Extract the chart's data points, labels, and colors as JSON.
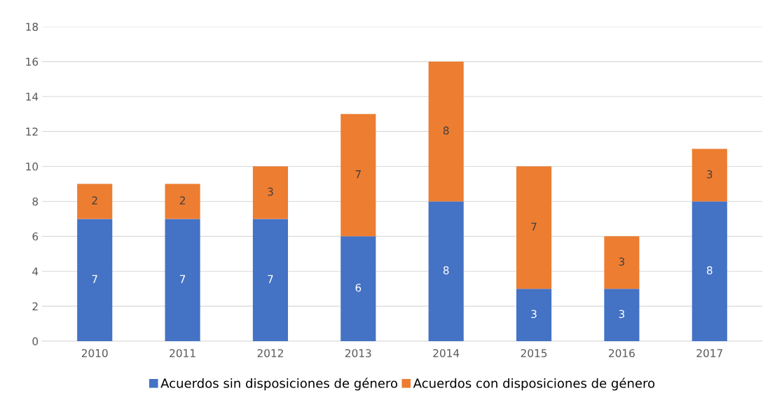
{
  "chart_data": {
    "type": "bar",
    "stacked": true,
    "categories": [
      "2010",
      "2011",
      "2012",
      "2013",
      "2014",
      "2015",
      "2016",
      "2017"
    ],
    "series": [
      {
        "name": "Acuerdos sin disposiciones de género",
        "color": "#4472c4",
        "values": [
          7,
          7,
          7,
          6,
          8,
          3,
          3,
          8
        ]
      },
      {
        "name": "Acuerdos con disposiciones de género",
        "color": "#ed7d31",
        "values": [
          2,
          2,
          3,
          7,
          8,
          7,
          3,
          3
        ]
      }
    ],
    "ylim": [
      0,
      18
    ],
    "yticks": [
      0,
      2,
      4,
      6,
      8,
      10,
      12,
      14,
      16,
      18
    ],
    "grid": "y",
    "legend": "bottom",
    "data_labels": true
  }
}
